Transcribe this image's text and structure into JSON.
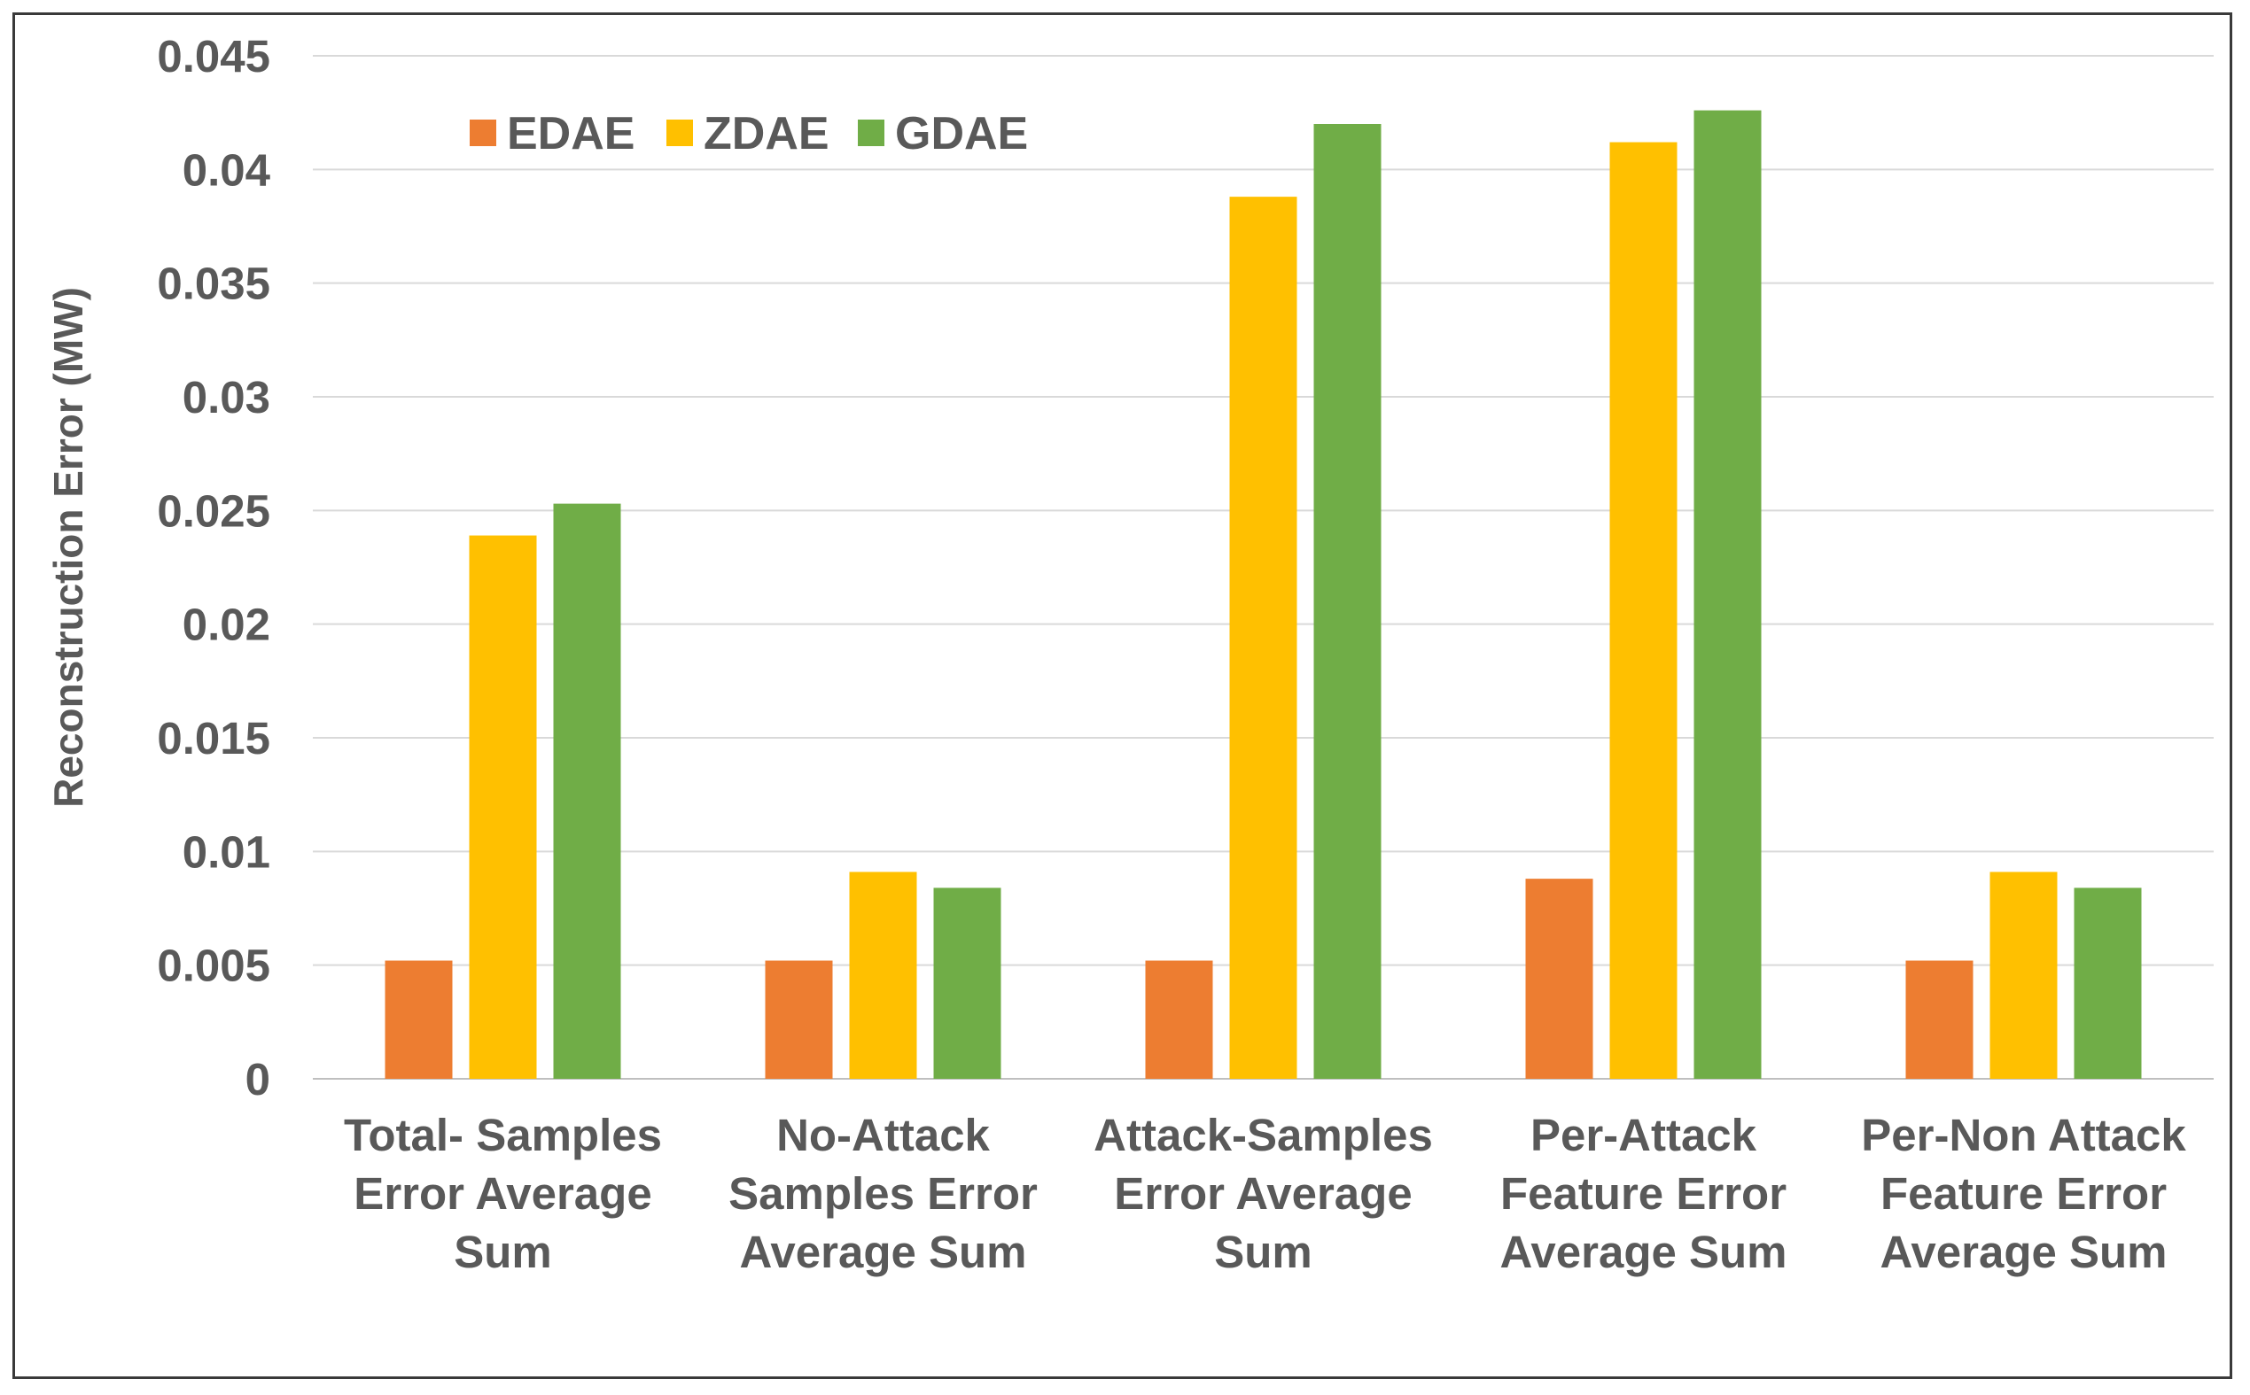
{
  "chart_data": {
    "type": "bar",
    "title": "",
    "xlabel": "",
    "ylabel": "Reconstruction Error (MW)",
    "ylim": [
      0,
      0.045
    ],
    "yticks": [
      0,
      0.005,
      0.01,
      0.015,
      0.02,
      0.025,
      0.03,
      0.035,
      0.04,
      0.045
    ],
    "ytick_labels": [
      "0",
      "0.005",
      "0.01",
      "0.015",
      "0.02",
      "0.025",
      "0.03",
      "0.035",
      "0.04",
      "0.045"
    ],
    "grid": true,
    "legend_position": "top-left",
    "categories": [
      [
        "Total- Samples",
        "Error Average",
        "Sum"
      ],
      [
        "No-Attack",
        "Samples Error",
        "Average Sum"
      ],
      [
        "Attack-Samples",
        "Error Average",
        "Sum"
      ],
      [
        "Per-Attack",
        "Feature Error",
        "Average Sum"
      ],
      [
        "Per-Non Attack",
        "Feature Error",
        "Average Sum"
      ]
    ],
    "series": [
      {
        "name": "EDAE",
        "color": "#ed7d31",
        "values": [
          0.0052,
          0.0052,
          0.0052,
          0.0088,
          0.0052
        ]
      },
      {
        "name": "ZDAE",
        "color": "#ffc000",
        "values": [
          0.0239,
          0.0091,
          0.0388,
          0.0412,
          0.0091
        ]
      },
      {
        "name": "GDAE",
        "color": "#70ad47",
        "values": [
          0.0253,
          0.0084,
          0.042,
          0.0426,
          0.0084
        ]
      }
    ]
  }
}
